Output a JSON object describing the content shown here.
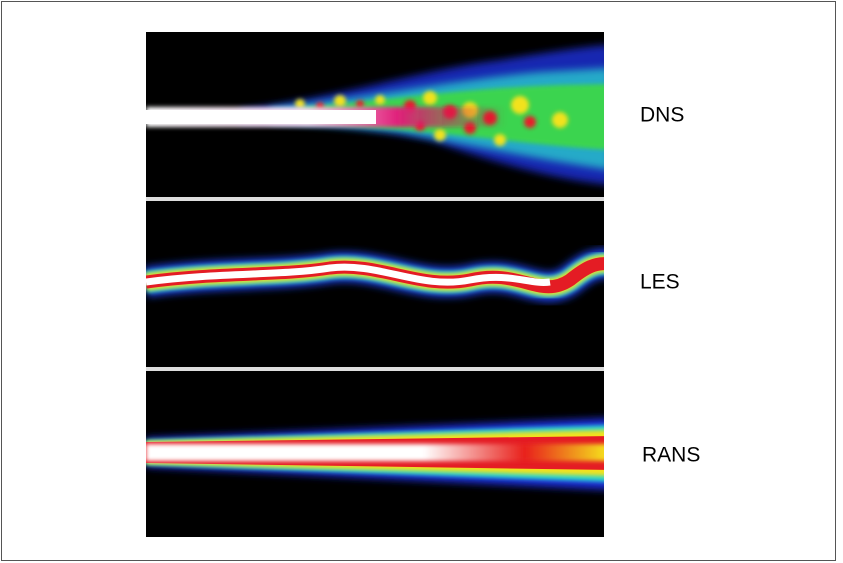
{
  "panels": [
    {
      "label": "DNS"
    },
    {
      "label": "LES"
    },
    {
      "label": "RANS"
    }
  ]
}
